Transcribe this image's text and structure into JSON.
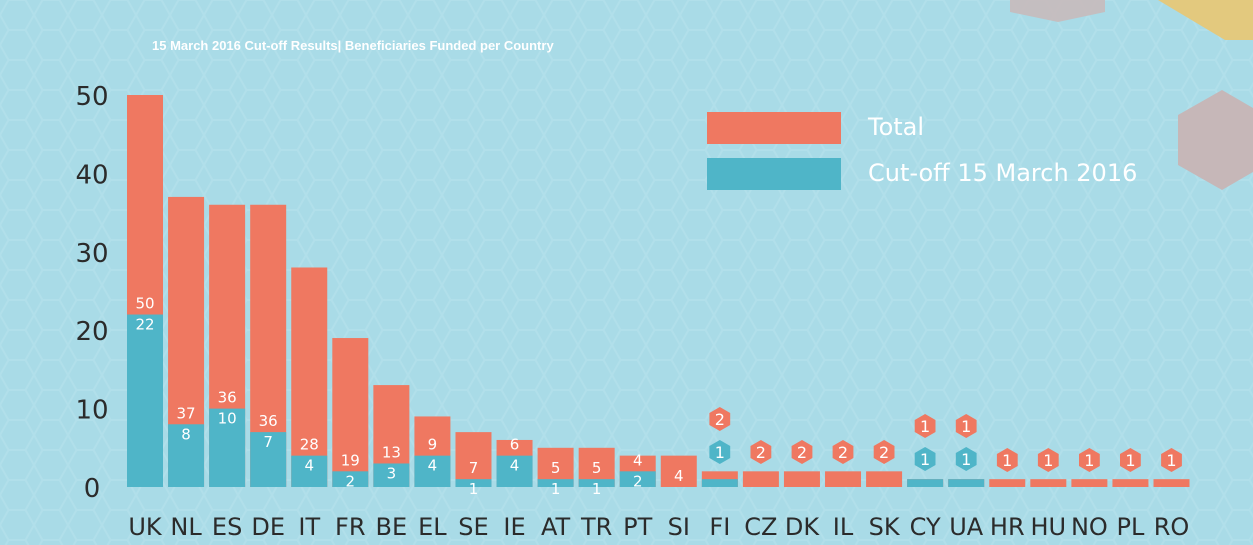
{
  "chart_data": {
    "type": "bar",
    "stacked": false,
    "title": "15 March 2016 Cut-off Results| Beneficiaries Funded per Country",
    "xlabel": "",
    "ylabel": "",
    "ylim": [
      0,
      50
    ],
    "yticks": [
      "0",
      "10",
      "20",
      "30",
      "40",
      "50"
    ],
    "grid": false,
    "legend_position": "top-right",
    "categories": [
      "UK",
      "NL",
      "ES",
      "DE",
      "IT",
      "FR",
      "BE",
      "EL",
      "SE",
      "IE",
      "AT",
      "TR",
      "PT",
      "SI",
      "FI",
      "CZ",
      "DK",
      "IL",
      "SK",
      "CY",
      "UA",
      "HR",
      "HU",
      "NO",
      "PL",
      "RO"
    ],
    "series": [
      {
        "name": "Total",
        "color": "#ef7861",
        "values": [
          50,
          37,
          36,
          36,
          28,
          19,
          13,
          9,
          7,
          6,
          5,
          5,
          4,
          4,
          2,
          2,
          2,
          2,
          2,
          1,
          1,
          1,
          1,
          1,
          1,
          1
        ]
      },
      {
        "name": "Cut-off 15 March 2016",
        "color": "#4fb5c8",
        "values": [
          22,
          8,
          10,
          7,
          4,
          2,
          3,
          4,
          1,
          4,
          1,
          1,
          2,
          0,
          1,
          0,
          0,
          0,
          0,
          1,
          1,
          0,
          0,
          0,
          0,
          0
        ]
      }
    ]
  }
}
